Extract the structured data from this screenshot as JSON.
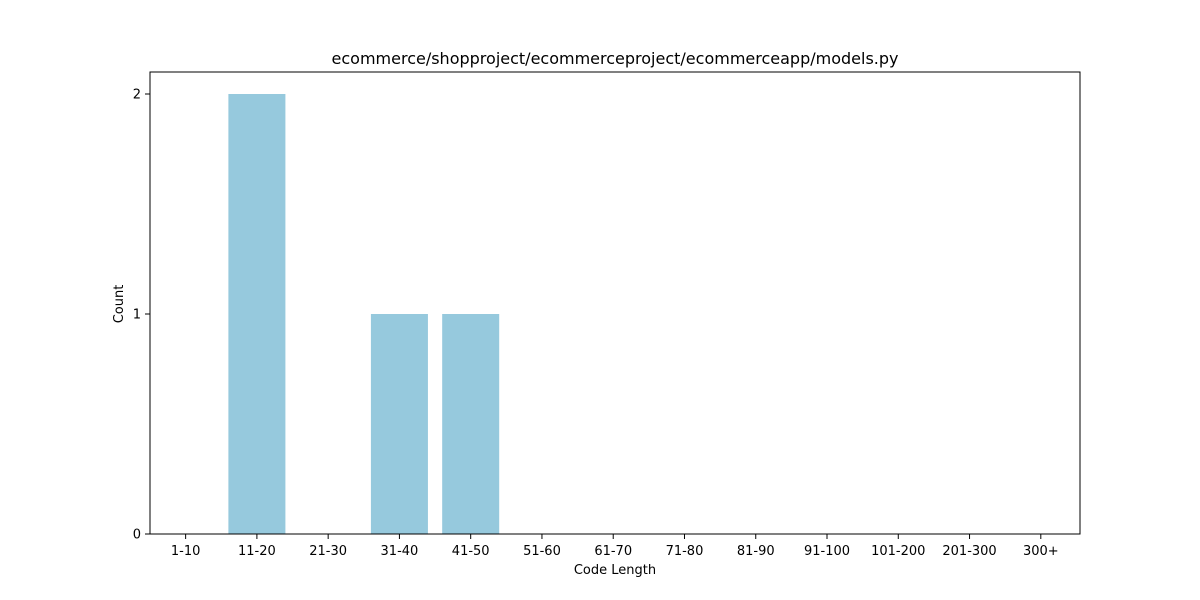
{
  "chart_data": {
    "type": "bar",
    "title": "ecommerce/shopproject/ecommerceproject/ecommerceapp/models.py",
    "xlabel": "Code Length",
    "ylabel": "Count",
    "categories": [
      "1-10",
      "11-20",
      "21-30",
      "31-40",
      "41-50",
      "51-60",
      "61-70",
      "71-80",
      "81-90",
      "91-100",
      "101-200",
      "201-300",
      "300+"
    ],
    "values": [
      0,
      2,
      0,
      1,
      1,
      0,
      0,
      0,
      0,
      0,
      0,
      0,
      0
    ],
    "ylim": [
      0,
      2.1
    ],
    "yticks": [
      0,
      1,
      2
    ],
    "grid": false,
    "bar_color": "#96c9dd"
  }
}
